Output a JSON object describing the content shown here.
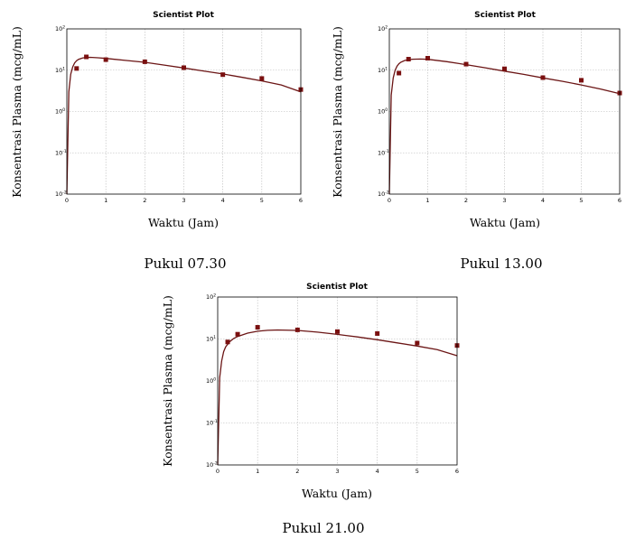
{
  "chart_data": [
    {
      "type": "line",
      "title": "Scientist Plot",
      "xlabel": "Waktu (Jam)",
      "ylabel": "Konsentrasi Plasma (mcg/mL)",
      "caption": "Pukul 07.30",
      "xlim": [
        0,
        6
      ],
      "ylim": [
        0.01,
        100
      ],
      "yscale": "log",
      "grid": true,
      "x_ticks": [
        "0",
        "1",
        "2",
        "3",
        "4",
        "5",
        "6"
      ],
      "y_ticks": [
        [
          "10",
          "-2"
        ],
        [
          "10",
          "-1"
        ],
        [
          "10",
          "0"
        ],
        [
          "10",
          "1"
        ],
        [
          "10",
          "2"
        ]
      ],
      "series": [
        {
          "type": "scatter",
          "x": [
            0.25,
            0.5,
            1,
            2,
            3,
            4,
            5,
            6
          ],
          "y": [
            11,
            21,
            18,
            16,
            11.5,
            7.8,
            6.3,
            3.4
          ]
        },
        {
          "type": "line",
          "x": [
            0,
            0.05,
            0.1,
            0.15,
            0.2,
            0.25,
            0.3,
            0.4,
            0.5,
            0.6,
            0.8,
            1,
            1.5,
            2,
            2.5,
            3,
            3.5,
            4,
            4.5,
            5,
            5.5,
            6
          ],
          "y": [
            0.01,
            3,
            8,
            12,
            15,
            17,
            18.3,
            19.8,
            20.4,
            20.5,
            20,
            19.3,
            17.3,
            15.5,
            13.3,
            11.3,
            9.6,
            8.1,
            6.7,
            5.5,
            4.4,
            3.0
          ]
        }
      ]
    },
    {
      "type": "line",
      "title": "Scientist Plot",
      "xlabel": "Waktu (Jam)",
      "ylabel": "Konsentrasi Plasma (mcg/mL)",
      "caption": "Pukul 13.00",
      "xlim": [
        0,
        6
      ],
      "ylim": [
        0.01,
        100
      ],
      "yscale": "log",
      "grid": true,
      "x_ticks": [
        "0",
        "1",
        "2",
        "3",
        "4",
        "5",
        "6"
      ],
      "y_ticks": [
        [
          "10",
          "-2"
        ],
        [
          "10",
          "-1"
        ],
        [
          "10",
          "0"
        ],
        [
          "10",
          "1"
        ],
        [
          "10",
          "2"
        ]
      ],
      "series": [
        {
          "type": "scatter",
          "x": [
            0.25,
            0.5,
            1,
            2,
            3,
            4,
            5,
            6
          ],
          "y": [
            8.5,
            18.5,
            19.5,
            14,
            10.8,
            6.6,
            5.7,
            2.8
          ]
        },
        {
          "type": "line",
          "x": [
            0,
            0.05,
            0.1,
            0.15,
            0.2,
            0.25,
            0.3,
            0.4,
            0.5,
            0.6,
            0.8,
            1,
            1.5,
            2,
            2.5,
            3,
            3.5,
            4,
            4.5,
            5,
            5.5,
            6
          ],
          "y": [
            0.01,
            2.5,
            6.5,
            10,
            12.5,
            14.3,
            15.6,
            17.2,
            18,
            18.4,
            18.6,
            18.3,
            16.1,
            13.6,
            11.4,
            9.5,
            7.9,
            6.5,
            5.4,
            4.4,
            3.5,
            2.7
          ]
        }
      ]
    },
    {
      "type": "line",
      "title": "Scientist Plot",
      "xlabel": "Waktu (Jam)",
      "ylabel": "Konsentrasi Plasma (mcg/mL)",
      "caption": "Pukul 21.00",
      "xlim": [
        0,
        6
      ],
      "ylim": [
        0.01,
        100
      ],
      "yscale": "log",
      "grid": true,
      "x_ticks": [
        "0",
        "1",
        "2",
        "3",
        "4",
        "5",
        "6"
      ],
      "y_ticks": [
        [
          "10",
          "-2"
        ],
        [
          "10",
          "-1"
        ],
        [
          "10",
          "0"
        ],
        [
          "10",
          "1"
        ],
        [
          "10",
          "2"
        ]
      ],
      "series": [
        {
          "type": "scatter",
          "x": [
            0.25,
            0.5,
            1,
            2,
            3,
            4,
            5,
            6
          ],
          "y": [
            8.5,
            13,
            19,
            16.5,
            15,
            13.5,
            8,
            7
          ]
        },
        {
          "type": "line",
          "x": [
            0,
            0.05,
            0.1,
            0.15,
            0.2,
            0.3,
            0.4,
            0.5,
            0.75,
            1,
            1.25,
            1.5,
            2,
            2.5,
            3,
            3.5,
            4,
            4.5,
            5,
            5.5,
            6
          ],
          "y": [
            0.01,
            1.2,
            3,
            5,
            6.5,
            8.6,
            10.3,
            11.5,
            13.8,
            15.3,
            16.1,
            16.4,
            16,
            14.6,
            12.9,
            11.2,
            9.6,
            8.1,
            6.8,
            5.6,
            4.0
          ]
        }
      ]
    }
  ]
}
